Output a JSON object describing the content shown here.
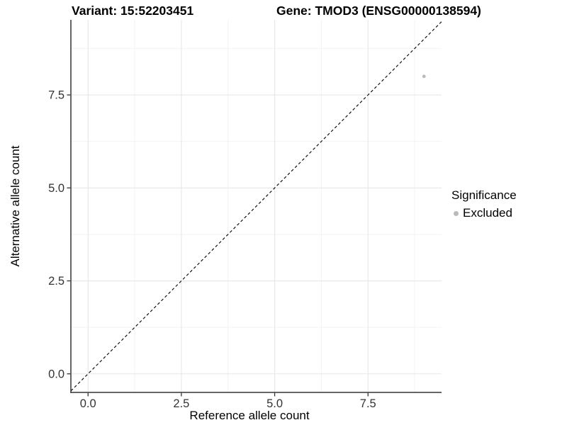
{
  "titles": {
    "left": "Variant: 15:52203451",
    "right": "Gene: TMOD3 (ENSG00000138594)"
  },
  "chart_data": {
    "type": "scatter",
    "xlabel": "Reference allele count",
    "ylabel": "Alternative allele count",
    "xlim": [
      -0.46,
      9.47
    ],
    "ylim": [
      -0.5,
      9.52
    ],
    "x_ticks": {
      "values": [
        0,
        2.5,
        5,
        7.5
      ],
      "labels": [
        "0.0",
        "2.5",
        "5.0",
        "7.5"
      ]
    },
    "y_ticks": {
      "values": [
        0,
        2.5,
        5,
        7.5
      ],
      "labels": [
        "0.0",
        "2.5",
        "5.0",
        "7.5"
      ]
    },
    "x_minor_ticks": [
      1.25,
      3.75,
      6.25,
      8.75
    ],
    "y_minor_ticks": [
      1.25,
      3.75,
      6.25,
      8.75
    ],
    "grid": true,
    "series": [
      {
        "name": "Excluded",
        "color": "#bababa",
        "marker": "circle",
        "points": [
          {
            "x": 9,
            "y": 8
          }
        ]
      }
    ],
    "reference_line": {
      "type": "identity",
      "slope": 1,
      "intercept": 0,
      "style": "dashed",
      "color": "#111111"
    },
    "legend": {
      "title": "Significance",
      "position": "right",
      "items": [
        {
          "label": "Excluded",
          "color": "#bababa",
          "marker": "circle"
        }
      ]
    }
  },
  "colors": {
    "background": "#ffffff",
    "grid_major": "#e7e7e7",
    "grid_minor": "#f2f2f2",
    "axis_line": "#333333",
    "tick_label": "#333333",
    "point": "#bababa"
  }
}
